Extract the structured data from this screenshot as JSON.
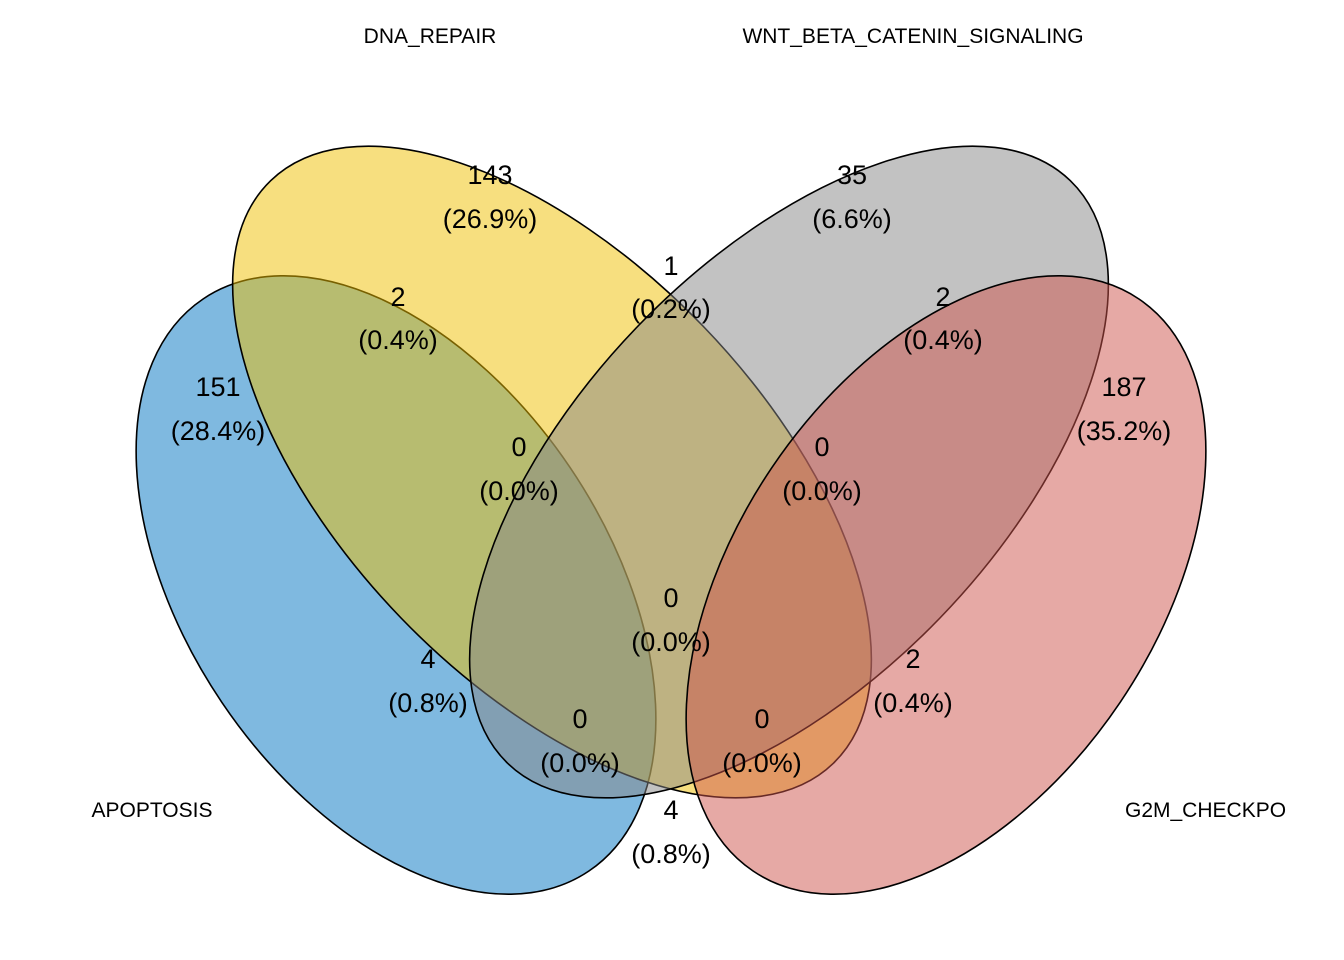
{
  "sets": [
    {
      "key": "A",
      "label": "APOPTOSIS",
      "color": "#0073C2"
    },
    {
      "key": "B",
      "label": "DNA_REPAIR",
      "color": "#EFC000"
    },
    {
      "key": "C",
      "label": "WNT_BETA_CATENIN_SIGNALING",
      "color": "#868686"
    },
    {
      "key": "D",
      "label": "G2M_CHECKPO",
      "color": "#CD534C"
    }
  ],
  "regions": [
    {
      "id": "A",
      "count": "151",
      "pct": "(28.4%)"
    },
    {
      "id": "B",
      "count": "143",
      "pct": "(26.9%)"
    },
    {
      "id": "C",
      "count": "35",
      "pct": "(6.6%)"
    },
    {
      "id": "D",
      "count": "187",
      "pct": "(35.2%)"
    },
    {
      "id": "AB",
      "count": "2",
      "pct": "(0.4%)"
    },
    {
      "id": "BC",
      "count": "1",
      "pct": "(0.2%)"
    },
    {
      "id": "CD",
      "count": "2",
      "pct": "(0.4%)"
    },
    {
      "id": "ABC",
      "count": "0",
      "pct": "(0.0%)"
    },
    {
      "id": "BCD",
      "count": "0",
      "pct": "(0.0%)"
    },
    {
      "id": "AC",
      "count": "4",
      "pct": "(0.8%)"
    },
    {
      "id": "ABCD",
      "count": "0",
      "pct": "(0.0%)"
    },
    {
      "id": "BD",
      "count": "2",
      "pct": "(0.4%)"
    },
    {
      "id": "ACD",
      "count": "0",
      "pct": "(0.0%)"
    },
    {
      "id": "ABD",
      "count": "0",
      "pct": "(0.0%)"
    },
    {
      "id": "AD",
      "count": "4",
      "pct": "(0.8%)"
    }
  ]
}
